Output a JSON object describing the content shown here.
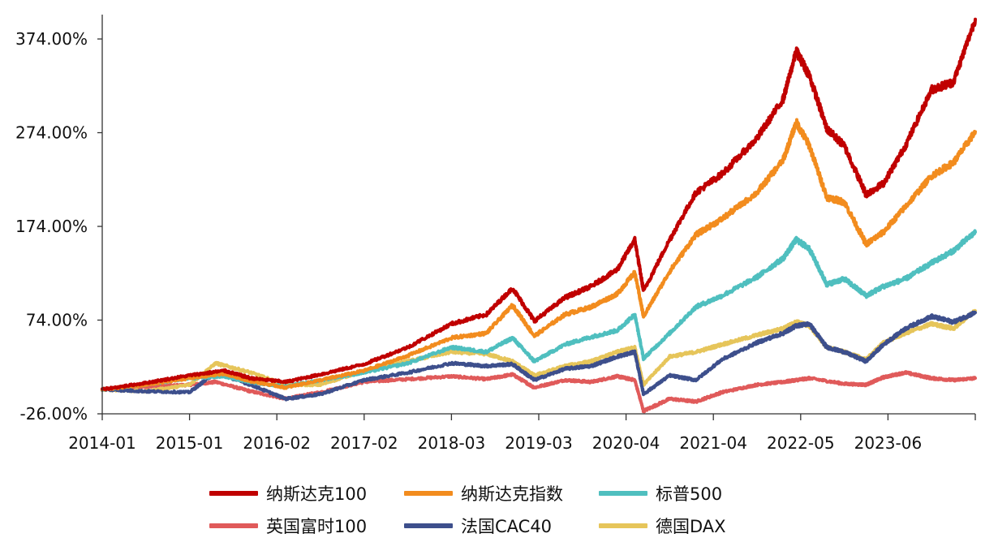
{
  "chart_data": {
    "type": "line",
    "title": "",
    "xlabel": "",
    "ylabel": "",
    "ylim": [
      -26,
      400
    ],
    "y_ticks": [
      -26,
      74,
      174,
      274,
      374
    ],
    "y_tick_labels": [
      "-26.00%",
      "74.00%",
      "174.00%",
      "274.00%",
      "374.00%"
    ],
    "x_tick_labels": [
      "2014-01",
      "2015-01",
      "2016-02",
      "2017-02",
      "2018-03",
      "2019-03",
      "2020-04",
      "2021-04",
      "2022-05",
      "2023-06"
    ],
    "x_range": [
      2014.0,
      2024.0
    ],
    "series": [
      {
        "name": "纳斯达克100",
        "color": "#c00000",
        "points": [
          [
            2014.0,
            0
          ],
          [
            2014.5,
            7
          ],
          [
            2015.0,
            15
          ],
          [
            2015.4,
            20
          ],
          [
            2015.7,
            12
          ],
          [
            2016.1,
            8
          ],
          [
            2016.5,
            16
          ],
          [
            2017.0,
            27
          ],
          [
            2017.5,
            45
          ],
          [
            2018.0,
            70
          ],
          [
            2018.4,
            80
          ],
          [
            2018.7,
            108
          ],
          [
            2018.95,
            73
          ],
          [
            2019.3,
            98
          ],
          [
            2019.6,
            110
          ],
          [
            2019.9,
            128
          ],
          [
            2020.1,
            160
          ],
          [
            2020.2,
            105
          ],
          [
            2020.5,
            160
          ],
          [
            2020.8,
            210
          ],
          [
            2021.1,
            230
          ],
          [
            2021.5,
            268
          ],
          [
            2021.8,
            310
          ],
          [
            2021.95,
            361
          ],
          [
            2022.1,
            335
          ],
          [
            2022.3,
            278
          ],
          [
            2022.5,
            260
          ],
          [
            2022.75,
            208
          ],
          [
            2022.95,
            220
          ],
          [
            2023.2,
            260
          ],
          [
            2023.5,
            320
          ],
          [
            2023.75,
            328
          ],
          [
            2024.0,
            395
          ]
        ]
      },
      {
        "name": "纳斯达克指数",
        "color": "#f28c1e",
        "points": [
          [
            2014.0,
            0
          ],
          [
            2014.5,
            5
          ],
          [
            2015.0,
            12
          ],
          [
            2015.4,
            17
          ],
          [
            2015.7,
            9
          ],
          [
            2016.1,
            2
          ],
          [
            2016.5,
            10
          ],
          [
            2017.0,
            20
          ],
          [
            2017.5,
            36
          ],
          [
            2018.0,
            55
          ],
          [
            2018.4,
            60
          ],
          [
            2018.7,
            90
          ],
          [
            2018.95,
            57
          ],
          [
            2019.3,
            80
          ],
          [
            2019.6,
            88
          ],
          [
            2019.9,
            102
          ],
          [
            2020.1,
            125
          ],
          [
            2020.2,
            78
          ],
          [
            2020.5,
            126
          ],
          [
            2020.8,
            165
          ],
          [
            2021.1,
            182
          ],
          [
            2021.5,
            210
          ],
          [
            2021.8,
            245
          ],
          [
            2021.95,
            285
          ],
          [
            2022.1,
            260
          ],
          [
            2022.3,
            205
          ],
          [
            2022.5,
            200
          ],
          [
            2022.75,
            155
          ],
          [
            2022.95,
            168
          ],
          [
            2023.2,
            195
          ],
          [
            2023.5,
            228
          ],
          [
            2023.75,
            242
          ],
          [
            2024.0,
            275
          ]
        ]
      },
      {
        "name": "标普500",
        "color": "#4fbfbf",
        "points": [
          [
            2014.0,
            0
          ],
          [
            2014.5,
            5
          ],
          [
            2015.0,
            12
          ],
          [
            2015.4,
            14
          ],
          [
            2015.7,
            8
          ],
          [
            2016.1,
            3
          ],
          [
            2016.5,
            10
          ],
          [
            2017.0,
            18
          ],
          [
            2017.5,
            28
          ],
          [
            2018.0,
            45
          ],
          [
            2018.4,
            40
          ],
          [
            2018.7,
            55
          ],
          [
            2018.95,
            30
          ],
          [
            2019.3,
            48
          ],
          [
            2019.6,
            56
          ],
          [
            2019.9,
            63
          ],
          [
            2020.1,
            80
          ],
          [
            2020.2,
            33
          ],
          [
            2020.5,
            60
          ],
          [
            2020.8,
            88
          ],
          [
            2021.1,
            100
          ],
          [
            2021.5,
            120
          ],
          [
            2021.8,
            140
          ],
          [
            2021.95,
            160
          ],
          [
            2022.1,
            150
          ],
          [
            2022.3,
            112
          ],
          [
            2022.5,
            118
          ],
          [
            2022.75,
            100
          ],
          [
            2022.95,
            110
          ],
          [
            2023.2,
            118
          ],
          [
            2023.5,
            135
          ],
          [
            2023.75,
            148
          ],
          [
            2024.0,
            168
          ]
        ]
      },
      {
        "name": "英国富时100",
        "color": "#e05a5a",
        "points": [
          [
            2014.0,
            0
          ],
          [
            2014.5,
            3
          ],
          [
            2015.0,
            5
          ],
          [
            2015.3,
            8
          ],
          [
            2015.7,
            -2
          ],
          [
            2016.1,
            -10
          ],
          [
            2016.5,
            -3
          ],
          [
            2017.0,
            8
          ],
          [
            2017.5,
            11
          ],
          [
            2018.0,
            14
          ],
          [
            2018.4,
            11
          ],
          [
            2018.7,
            16
          ],
          [
            2018.95,
            2
          ],
          [
            2019.3,
            10
          ],
          [
            2019.6,
            8
          ],
          [
            2019.9,
            14
          ],
          [
            2020.1,
            10
          ],
          [
            2020.2,
            -23
          ],
          [
            2020.5,
            -10
          ],
          [
            2020.8,
            -13
          ],
          [
            2021.1,
            -3
          ],
          [
            2021.5,
            5
          ],
          [
            2021.8,
            8
          ],
          [
            2021.95,
            10
          ],
          [
            2022.1,
            12
          ],
          [
            2022.5,
            6
          ],
          [
            2022.75,
            5
          ],
          [
            2022.95,
            13
          ],
          [
            2023.2,
            18
          ],
          [
            2023.5,
            12
          ],
          [
            2023.75,
            10
          ],
          [
            2024.0,
            12
          ]
        ]
      },
      {
        "name": "法国CAC40",
        "color": "#3d4f8c",
        "points": [
          [
            2014.0,
            0
          ],
          [
            2014.5,
            -2
          ],
          [
            2015.0,
            -3
          ],
          [
            2015.3,
            18
          ],
          [
            2015.7,
            5
          ],
          [
            2016.1,
            -10
          ],
          [
            2016.5,
            -5
          ],
          [
            2017.0,
            10
          ],
          [
            2017.5,
            18
          ],
          [
            2018.0,
            28
          ],
          [
            2018.4,
            25
          ],
          [
            2018.7,
            27
          ],
          [
            2018.95,
            10
          ],
          [
            2019.3,
            22
          ],
          [
            2019.6,
            25
          ],
          [
            2019.9,
            35
          ],
          [
            2020.1,
            40
          ],
          [
            2020.2,
            -5
          ],
          [
            2020.5,
            15
          ],
          [
            2020.8,
            10
          ],
          [
            2021.1,
            32
          ],
          [
            2021.5,
            50
          ],
          [
            2021.8,
            60
          ],
          [
            2021.95,
            68
          ],
          [
            2022.1,
            70
          ],
          [
            2022.3,
            45
          ],
          [
            2022.5,
            40
          ],
          [
            2022.75,
            30
          ],
          [
            2022.95,
            48
          ],
          [
            2023.2,
            65
          ],
          [
            2023.5,
            78
          ],
          [
            2023.75,
            72
          ],
          [
            2024.0,
            82
          ]
        ]
      },
      {
        "name": "德国DAX",
        "color": "#e6c55a",
        "points": [
          [
            2014.0,
            0
          ],
          [
            2014.5,
            -2
          ],
          [
            2015.0,
            5
          ],
          [
            2015.3,
            28
          ],
          [
            2015.7,
            18
          ],
          [
            2016.1,
            5
          ],
          [
            2016.5,
            5
          ],
          [
            2017.0,
            20
          ],
          [
            2017.5,
            30
          ],
          [
            2018.0,
            40
          ],
          [
            2018.4,
            38
          ],
          [
            2018.7,
            30
          ],
          [
            2018.95,
            15
          ],
          [
            2019.3,
            25
          ],
          [
            2019.6,
            30
          ],
          [
            2019.9,
            40
          ],
          [
            2020.1,
            45
          ],
          [
            2020.2,
            5
          ],
          [
            2020.5,
            35
          ],
          [
            2020.8,
            40
          ],
          [
            2021.1,
            48
          ],
          [
            2021.5,
            58
          ],
          [
            2021.8,
            65
          ],
          [
            2021.95,
            72
          ],
          [
            2022.1,
            68
          ],
          [
            2022.3,
            45
          ],
          [
            2022.5,
            40
          ],
          [
            2022.75,
            32
          ],
          [
            2022.95,
            50
          ],
          [
            2023.2,
            60
          ],
          [
            2023.5,
            70
          ],
          [
            2023.75,
            65
          ],
          [
            2024.0,
            84
          ]
        ]
      }
    ]
  }
}
